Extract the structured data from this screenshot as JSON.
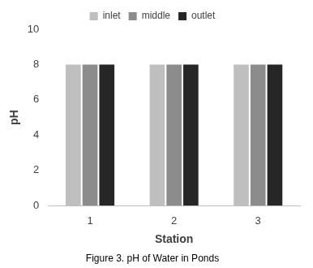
{
  "chart_data": {
    "type": "bar",
    "title": "Figure 3. pH of Water in Ponds",
    "x_label": "Station",
    "y_label": "pH",
    "categories": [
      "1",
      "2",
      "3"
    ],
    "series": [
      {
        "name": "inlet",
        "color": "#bfbfbf",
        "values": [
          8,
          8,
          8
        ]
      },
      {
        "name": "middle",
        "color": "#8c8c8c",
        "values": [
          8,
          8,
          8
        ]
      },
      {
        "name": "outlet",
        "color": "#262626",
        "values": [
          8,
          8,
          8
        ]
      }
    ],
    "ylim": [
      0,
      10
    ],
    "yticks": [
      0,
      2,
      4,
      6,
      8,
      10
    ],
    "grid": false,
    "legend": "top"
  }
}
